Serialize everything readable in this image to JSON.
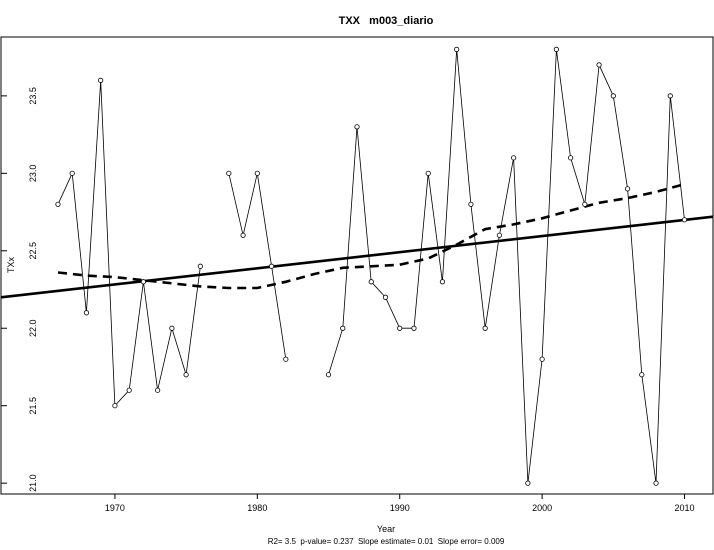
{
  "chart_data": {
    "type": "line",
    "title": "TXX   m003_diario",
    "xlabel": "Year",
    "ylabel": "TXx",
    "subtitle": "R2= 3.5  p-value= 0.237  Slope estimate= 0.01  Slope error= 0.009",
    "xlim": [
      1962,
      2012
    ],
    "ylim": [
      20.93,
      23.88
    ],
    "x_ticks": [
      1970,
      1980,
      1990,
      2000,
      2010
    ],
    "y_ticks": [
      21.0,
      21.5,
      22.0,
      22.5,
      23.0,
      23.5
    ],
    "grid": false,
    "series": [
      {
        "style": "thin-line-with-points",
        "points": [
          [
            1966,
            22.8
          ],
          [
            1967,
            23.0
          ],
          [
            1968,
            22.1
          ],
          [
            1969,
            23.6
          ],
          [
            1970,
            21.5
          ],
          [
            1971,
            21.6
          ],
          [
            1972,
            22.3
          ],
          [
            1973,
            21.6
          ],
          [
            1974,
            22.0
          ],
          [
            1975,
            21.7
          ],
          [
            1976,
            22.4
          ],
          [
            1977,
            null
          ],
          [
            1978,
            23.0
          ],
          [
            1979,
            22.6
          ],
          [
            1980,
            23.0
          ],
          [
            1981,
            22.4
          ],
          [
            1982,
            21.8
          ],
          [
            1983,
            null
          ],
          [
            1984,
            null
          ],
          [
            1985,
            21.7
          ],
          [
            1986,
            22.0
          ],
          [
            1987,
            23.3
          ],
          [
            1988,
            22.3
          ],
          [
            1989,
            22.2
          ],
          [
            1990,
            22.0
          ],
          [
            1991,
            22.0
          ],
          [
            1992,
            23.0
          ],
          [
            1993,
            22.3
          ],
          [
            1994,
            23.8
          ],
          [
            1995,
            22.8
          ],
          [
            1996,
            22.0
          ],
          [
            1997,
            22.6
          ],
          [
            1998,
            23.1
          ],
          [
            1999,
            21.0
          ],
          [
            2000,
            21.8
          ],
          [
            2001,
            23.8
          ],
          [
            2002,
            23.1
          ],
          [
            2003,
            22.8
          ],
          [
            2004,
            23.7
          ],
          [
            2005,
            23.5
          ],
          [
            2006,
            22.9
          ],
          [
            2007,
            21.7
          ],
          [
            2008,
            21.0
          ],
          [
            2009,
            23.5
          ],
          [
            2010,
            22.7
          ]
        ]
      },
      {
        "style": "thick-solid-trend",
        "points": [
          [
            1962,
            22.2
          ],
          [
            2012,
            22.72
          ]
        ]
      },
      {
        "style": "thick-dashed-smooth",
        "points": [
          [
            1966,
            22.36
          ],
          [
            1968,
            22.34
          ],
          [
            1970,
            22.33
          ],
          [
            1972,
            22.31
          ],
          [
            1974,
            22.29
          ],
          [
            1976,
            22.27
          ],
          [
            1978,
            22.26
          ],
          [
            1980,
            22.26
          ],
          [
            1982,
            22.3
          ],
          [
            1984,
            22.35
          ],
          [
            1986,
            22.39
          ],
          [
            1988,
            22.4
          ],
          [
            1990,
            22.41
          ],
          [
            1992,
            22.45
          ],
          [
            1994,
            22.54
          ],
          [
            1996,
            22.64
          ],
          [
            1998,
            22.67
          ],
          [
            2000,
            22.71
          ],
          [
            2002,
            22.76
          ],
          [
            2004,
            22.81
          ],
          [
            2006,
            22.84
          ],
          [
            2008,
            22.88
          ],
          [
            2010,
            22.93
          ]
        ]
      }
    ]
  }
}
